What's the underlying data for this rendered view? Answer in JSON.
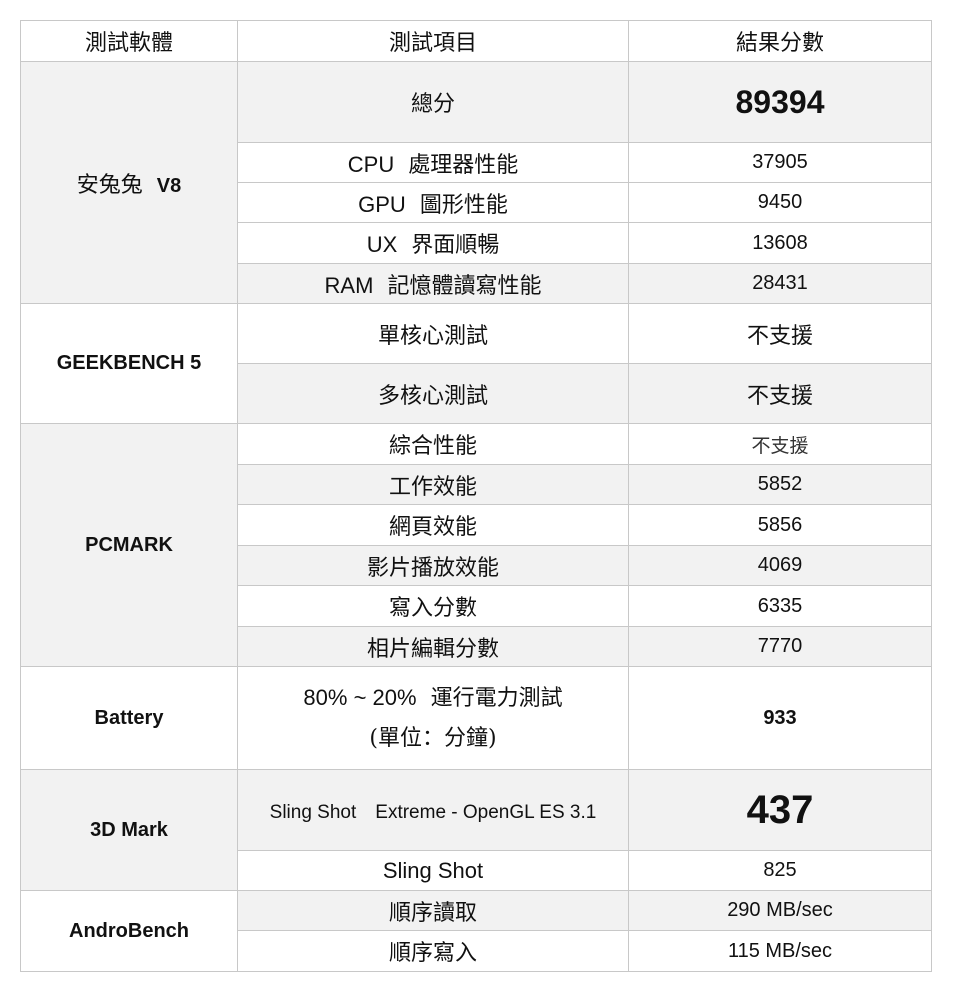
{
  "header": {
    "software": "測試軟體",
    "item": "測試項目",
    "result": "結果分數"
  },
  "antutu": {
    "name": "安兔兔",
    "version": "V8",
    "rows": [
      {
        "item": "總分",
        "value": "89394"
      },
      {
        "prefix": "CPU",
        "item": "處理器性能",
        "value": "37905"
      },
      {
        "prefix": "GPU",
        "item": "圖形性能",
        "value": "9450"
      },
      {
        "prefix": "UX",
        "item": "界面順暢",
        "value": "13608"
      },
      {
        "prefix": "RAM",
        "item": "記憶體讀寫性能",
        "value": "28431"
      }
    ]
  },
  "geekbench": {
    "name": "GEEKBENCH 5",
    "rows": [
      {
        "item": "單核心測試",
        "value": "不支援"
      },
      {
        "item": "多核心測試",
        "value": "不支援"
      }
    ]
  },
  "pcmark": {
    "name": "PCMARK",
    "rows": [
      {
        "item": "綜合性能",
        "value": "不支援"
      },
      {
        "item": "工作效能",
        "value": "5852"
      },
      {
        "item": "網頁效能",
        "value": "5856"
      },
      {
        "item": "影片播放效能",
        "value": "4069"
      },
      {
        "item": "寫入分數",
        "value": "6335"
      },
      {
        "item": "相片編輯分數",
        "value": "7770"
      }
    ]
  },
  "battery": {
    "name": "Battery",
    "range": "80% ~ 20%",
    "item": "運行電力測試",
    "unit": "(單位：分鐘)",
    "value": "933"
  },
  "mark3d": {
    "name": "3D Mark",
    "rows": [
      {
        "item": "Sling Shot　Extreme - OpenGL ES 3.1",
        "value": "437"
      },
      {
        "item": "Sling Shot",
        "value": "825"
      }
    ]
  },
  "androbench": {
    "name": "AndroBench",
    "rows": [
      {
        "item": "順序讀取",
        "value": "290 MB/sec"
      },
      {
        "item": "順序寫入",
        "value": "115 MB/sec"
      }
    ]
  },
  "colors": {
    "shaded": "#f2f2f2",
    "border": "#c8c8c8"
  }
}
